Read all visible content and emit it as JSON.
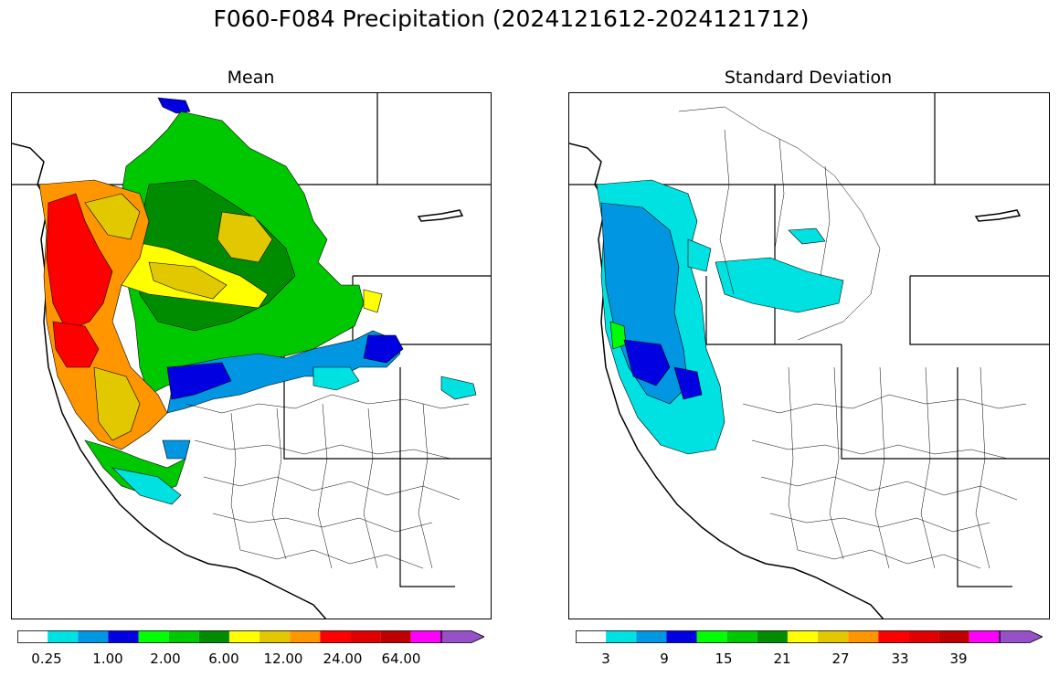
{
  "title": "F060-F084 Precipitation (2024121612-2024121712)",
  "panels": [
    {
      "id": "mean",
      "title": "Mean",
      "colorbar": {
        "colors": [
          "#ffffff",
          "#00e1e1",
          "#0096e1",
          "#0000e1",
          "#00ff00",
          "#00c800",
          "#008c00",
          "#ffff00",
          "#e1c800",
          "#ff9600",
          "#ff0000",
          "#e10000",
          "#be0000",
          "#ff00ff",
          "#9650c8"
        ],
        "tick_labels": [
          "0.25",
          "1.00",
          "2.00",
          "6.00",
          "12.00",
          "24.00",
          "64.00"
        ]
      }
    },
    {
      "id": "stddev",
      "title": "Standard Deviation",
      "colorbar": {
        "colors": [
          "#ffffff",
          "#00e1e1",
          "#0096e1",
          "#0000e1",
          "#00ff00",
          "#00c800",
          "#008c00",
          "#ffff00",
          "#e1c800",
          "#ff9600",
          "#ff0000",
          "#e10000",
          "#be0000",
          "#ff00ff",
          "#9650c8"
        ],
        "tick_labels": [
          "3",
          "9",
          "15",
          "21",
          "27",
          "33",
          "39"
        ]
      }
    }
  ]
}
